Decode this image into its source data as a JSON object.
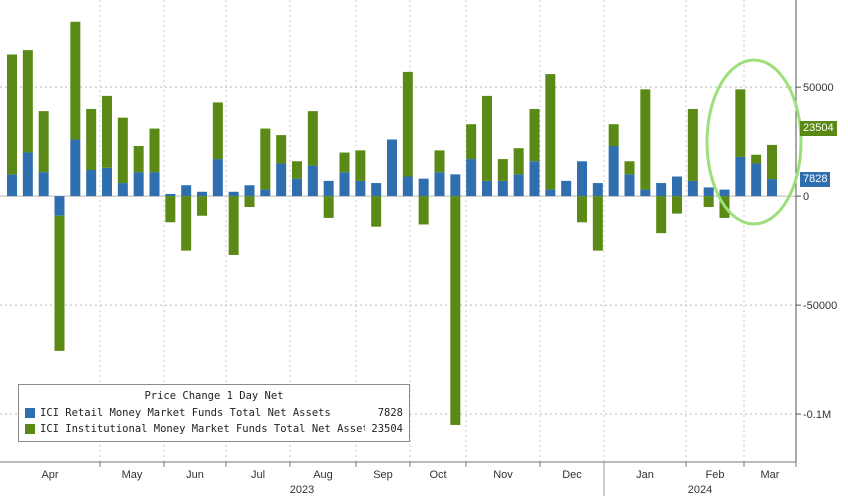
{
  "chart_data": {
    "type": "bar",
    "stacked": true,
    "title": "Price Change 1 Day Net",
    "ylim": [
      -122000,
      90000
    ],
    "yticks": [
      {
        "value": 50000,
        "label": "50000"
      },
      {
        "value": 0,
        "label": "0"
      },
      {
        "value": -50000,
        "label": "-50000"
      },
      {
        "value": -100000,
        "label": "-0.1M"
      }
    ],
    "months": [
      "Apr",
      "May",
      "Jun",
      "Jul",
      "Aug",
      "Sep",
      "Oct",
      "Nov",
      "Dec",
      "Jan",
      "Feb",
      "Mar"
    ],
    "years": [
      "2023",
      "2024"
    ],
    "series": [
      {
        "name": "ICI Retail Money Market Funds Total Net Assets",
        "color": "#2f6fb0",
        "last_value": "7828",
        "values": [
          10000,
          20000,
          11000,
          -9000,
          26000,
          12000,
          13000,
          6000,
          11000,
          11000,
          1000,
          5000,
          2000,
          17000,
          2000,
          5000,
          3000,
          15000,
          8000,
          14000,
          7000,
          11000,
          7000,
          6000,
          26000,
          9000,
          8000,
          11000,
          10000,
          17000,
          7000,
          7000,
          10000,
          16000,
          3000,
          7000,
          16000,
          6000,
          23000,
          10000,
          3000,
          6000,
          9000,
          7000,
          4000,
          3000,
          18000,
          15000,
          7828
        ]
      },
      {
        "name": "ICI Institutional Money Market Funds Total Net Assets",
        "color": "#5a8a15",
        "last_value": "23504",
        "values": [
          55000,
          47000,
          28000,
          -62000,
          54000,
          28000,
          33000,
          30000,
          12000,
          20000,
          -12000,
          -25000,
          -9000,
          26000,
          -27000,
          -5000,
          28000,
          13000,
          8000,
          25000,
          -10000,
          9000,
          14000,
          -14000,
          0,
          48000,
          -13000,
          10000,
          -105000,
          16000,
          39000,
          10000,
          12000,
          24000,
          53000,
          0,
          -12000,
          -25000,
          10000,
          6000,
          46000,
          -17000,
          -8000,
          33000,
          -5000,
          -10000,
          31000,
          4000,
          15676
        ]
      }
    ]
  },
  "legend": {
    "title": "Price Change 1 Day Net",
    "items": [
      {
        "label": "ICI Retail Money Market Funds Total Net Assets",
        "value": "7828",
        "color": "#2f6fb0"
      },
      {
        "label": "ICI Institutional Money Market Funds Total Net Assets",
        "value": "23504",
        "color": "#5a8a15"
      }
    ]
  },
  "value_tags": {
    "retail": "7828",
    "institutional": "23504"
  },
  "annotation": {
    "shape": "ellipse",
    "color": "#9be07a"
  }
}
